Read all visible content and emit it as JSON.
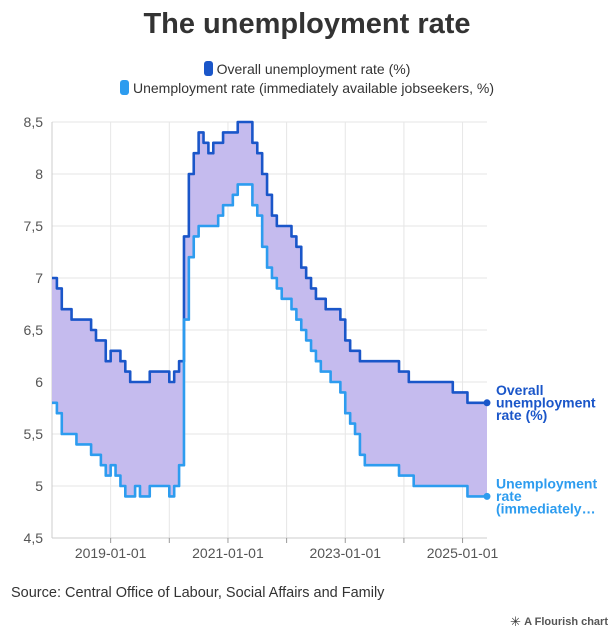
{
  "title": "The unemployment rate",
  "source": "Source: Central Office of Labour, Social Affairs and Family",
  "credit": "A Flourish chart",
  "credit_icon": "flourish-star-icon",
  "colors": {
    "series_overall": "#1a56c9",
    "series_immediate": "#2d9cef",
    "fill_between": "#c5bbee",
    "grid": "#e6e6e6",
    "axis_text": "#555555"
  },
  "chart_data": {
    "type": "area",
    "title": "The unemployment rate",
    "xlabel": "",
    "ylabel": "",
    "ylim": [
      4.5,
      8.5
    ],
    "yticks": [
      4.5,
      5,
      5.5,
      6,
      6.5,
      7,
      7.5,
      8,
      8.5
    ],
    "ytick_labels": [
      "4,5",
      "5",
      "5,5",
      "6",
      "6,5",
      "7",
      "7,5",
      "8",
      "8,5"
    ],
    "xticks": [
      "2019-01-01",
      "2021-01-01",
      "2023-01-01",
      "2025-01-01"
    ],
    "x_start": "2018-01",
    "x_end": "2025-06",
    "grid": true,
    "legend_position": "top",
    "fill_between_series": true,
    "series": [
      {
        "name": "Overall unemployment rate (%)",
        "end_label": "Overall unemployment rate (%)",
        "values": [
          7.0,
          6.9,
          6.7,
          6.7,
          6.6,
          6.6,
          6.6,
          6.6,
          6.5,
          6.4,
          6.4,
          6.2,
          6.3,
          6.3,
          6.2,
          6.1,
          6.0,
          6.0,
          6.0,
          6.0,
          6.1,
          6.1,
          6.1,
          6.1,
          6.0,
          6.1,
          6.2,
          7.4,
          8.0,
          8.2,
          8.4,
          8.3,
          8.2,
          8.3,
          8.3,
          8.4,
          8.4,
          8.4,
          8.5,
          8.5,
          8.5,
          8.3,
          8.2,
          8.0,
          7.8,
          7.6,
          7.5,
          7.5,
          7.5,
          7.4,
          7.3,
          7.1,
          7.0,
          6.9,
          6.8,
          6.8,
          6.7,
          6.7,
          6.7,
          6.6,
          6.4,
          6.3,
          6.3,
          6.2,
          6.2,
          6.2,
          6.2,
          6.2,
          6.2,
          6.2,
          6.2,
          6.1,
          6.1,
          6.0,
          6.0,
          6.0,
          6.0,
          6.0,
          6.0,
          6.0,
          6.0,
          6.0,
          5.9,
          5.9,
          5.9,
          5.8,
          5.8,
          5.8,
          5.8,
          5.8
        ]
      },
      {
        "name": "Unemployment rate (immediately available jobseekers, %)",
        "end_label": "Unemployment rate (immediately…",
        "values": [
          5.8,
          5.7,
          5.5,
          5.5,
          5.5,
          5.4,
          5.4,
          5.4,
          5.3,
          5.3,
          5.2,
          5.1,
          5.2,
          5.1,
          5.0,
          4.9,
          4.9,
          5.0,
          4.9,
          4.9,
          5.0,
          5.0,
          5.0,
          5.0,
          4.9,
          5.0,
          5.2,
          6.6,
          7.2,
          7.4,
          7.5,
          7.5,
          7.5,
          7.5,
          7.6,
          7.7,
          7.7,
          7.8,
          7.9,
          7.9,
          7.9,
          7.7,
          7.6,
          7.3,
          7.1,
          7.0,
          6.9,
          6.8,
          6.8,
          6.7,
          6.6,
          6.5,
          6.4,
          6.3,
          6.2,
          6.1,
          6.1,
          6.0,
          6.0,
          5.9,
          5.7,
          5.6,
          5.5,
          5.3,
          5.2,
          5.2,
          5.2,
          5.2,
          5.2,
          5.2,
          5.2,
          5.1,
          5.1,
          5.1,
          5.0,
          5.0,
          5.0,
          5.0,
          5.0,
          5.0,
          5.0,
          5.0,
          5.0,
          5.0,
          5.0,
          4.9,
          4.9,
          4.9,
          4.9,
          4.9
        ]
      }
    ]
  }
}
